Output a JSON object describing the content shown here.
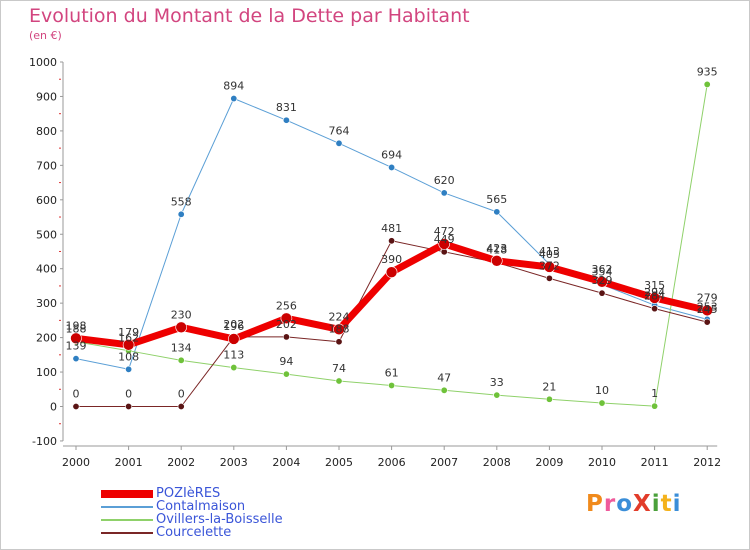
{
  "header": {
    "title": "Evolution du Montant de la Dette par Habitant",
    "subtitle": "(en €)"
  },
  "logo": {
    "text": "ProXiti",
    "letters": [
      {
        "ch": "P",
        "color": "#f08a1c"
      },
      {
        "ch": "r",
        "color": "#ef5a9b"
      },
      {
        "ch": "o",
        "color": "#3a8ed8"
      },
      {
        "ch": "X",
        "color": "#e23c2a"
      },
      {
        "ch": "i",
        "color": "#4aa03a"
      },
      {
        "ch": "t",
        "color": "#f4b21c"
      },
      {
        "ch": "i",
        "color": "#3a8ed8"
      }
    ]
  },
  "chart_data": {
    "type": "line",
    "title": "Evolution du Montant de la Dette par Habitant",
    "subtitle": "(en €)",
    "x": [
      "2000",
      "2001",
      "2002",
      "2003",
      "2004",
      "2005",
      "2006",
      "2007",
      "2008",
      "2009",
      "2010",
      "2011",
      "2012"
    ],
    "ylim": [
      -100,
      1000
    ],
    "yticks": [
      "-100",
      "0",
      "100",
      "200",
      "300",
      "400",
      "500",
      "600",
      "700",
      "800",
      "900",
      "1000"
    ],
    "grid": false,
    "legend_position": "bottom-left",
    "series": [
      {
        "name": "POZIèRES",
        "color": "#ee0000",
        "line_width": 7,
        "marker": "#cc0000",
        "values": [
          198,
          179,
          230,
          196,
          256,
          224,
          390,
          472,
          423,
          405,
          362,
          315,
          279
        ],
        "labels": [
          "198",
          "179",
          "230",
          "196",
          "256",
          "224",
          "390",
          "472",
          "423",
          "405",
          "362",
          "315",
          "279"
        ]
      },
      {
        "name": "Contalmaison",
        "color": "#5b9fd6",
        "line_width": 1,
        "marker": "#2f7fc2",
        "values": [
          139,
          108,
          558,
          894,
          831,
          764,
          694,
          620,
          565,
          413,
          354,
          294,
          253
        ],
        "labels": [
          "139",
          "108",
          "558",
          "894",
          "831",
          "764",
          "694",
          "620",
          "565",
          "413",
          "354",
          "294",
          "253"
        ]
      },
      {
        "name": "Ovillers-la-Boisselle",
        "color": "#8fd16a",
        "line_width": 1,
        "marker": "#6fc23a",
        "values": [
          188,
          162,
          134,
          113,
          94,
          74,
          61,
          47,
          33,
          21,
          10,
          1,
          935
        ],
        "labels": [
          "188",
          "162",
          "134",
          "113",
          "94",
          "74",
          "61",
          "47",
          "33",
          "21",
          "10",
          "1",
          "935"
        ]
      },
      {
        "name": "Courcelette",
        "color": "#7a2626",
        "line_width": 1,
        "marker": "#5a1414",
        "values": [
          0,
          0,
          0,
          202,
          202,
          188,
          481,
          449,
          418,
          372,
          329,
          284,
          245
        ],
        "labels": [
          "0",
          "0",
          "0",
          "202",
          "202",
          "188",
          "481",
          "449",
          "418",
          "372",
          "329",
          "284",
          "245"
        ]
      }
    ]
  }
}
